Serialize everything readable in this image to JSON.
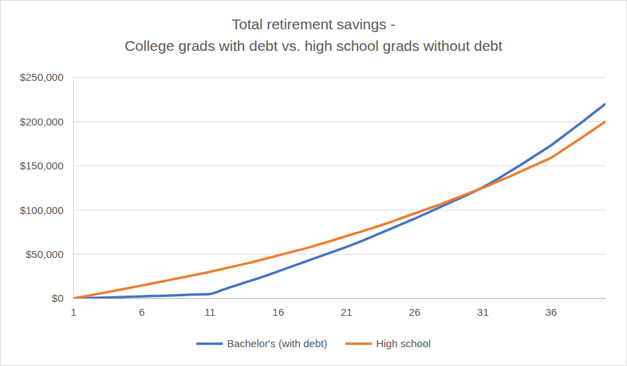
{
  "chart_data": {
    "type": "line",
    "title": [
      "Total retirement savings -",
      "College grads with debt vs. high school grads without debt"
    ],
    "x": [
      1,
      2,
      3,
      4,
      5,
      6,
      7,
      8,
      9,
      10,
      11,
      12,
      13,
      14,
      15,
      16,
      17,
      18,
      19,
      20,
      21,
      22,
      23,
      24,
      25,
      26,
      27,
      28,
      29,
      30,
      31,
      32,
      33,
      34,
      35,
      36,
      37,
      38,
      39,
      40
    ],
    "series": [
      {
        "name": "Bachelor's (with debt)",
        "color": "#4472c4",
        "values": [
          0,
          400,
          800,
          1200,
          1700,
          2200,
          2700,
          3200,
          3800,
          4400,
          5000,
          10000,
          15000,
          20000,
          25000,
          30500,
          36000,
          41500,
          47000,
          52500,
          58000,
          64000,
          70500,
          77000,
          83500,
          90000,
          97000,
          104000,
          111000,
          118000,
          125500,
          134000,
          143500,
          153000,
          163000,
          173000,
          184500,
          196000,
          208000,
          220000
        ]
      },
      {
        "name": "High school",
        "color": "#ed7d31",
        "values": [
          0,
          2800,
          5600,
          8500,
          11500,
          14500,
          17500,
          20600,
          23700,
          26800,
          30000,
          33500,
          37000,
          40500,
          44500,
          48500,
          52500,
          56500,
          61000,
          65500,
          70500,
          75000,
          80000,
          85000,
          90500,
          96000,
          101500,
          107000,
          113000,
          119000,
          125000,
          131500,
          138000,
          145000,
          152000,
          159000,
          169000,
          179000,
          189500,
          200000
        ]
      }
    ],
    "xlim": [
      1,
      40
    ],
    "xticks": [
      1,
      6,
      11,
      16,
      21,
      26,
      31,
      36
    ],
    "ylim": [
      0,
      250000
    ],
    "yticks": [
      {
        "value": 0,
        "label": "$0"
      },
      {
        "value": 50000,
        "label": "$50,000"
      },
      {
        "value": 100000,
        "label": "$100,000"
      },
      {
        "value": 150000,
        "label": "$150,000"
      },
      {
        "value": 200000,
        "label": "$200,000"
      },
      {
        "value": 250000,
        "label": "$250,000"
      }
    ],
    "grid": true,
    "legend": "bottom"
  }
}
